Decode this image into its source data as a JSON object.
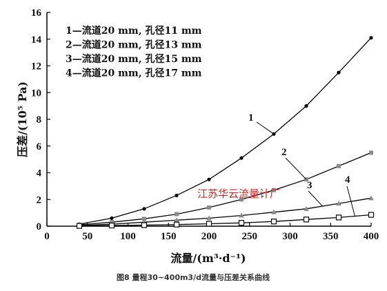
{
  "chart_data": {
    "type": "line",
    "xlabel": "流量/(m³·d⁻¹)",
    "ylabel": "压差/(10⁵ Pa)",
    "xlim": [
      0,
      400
    ],
    "ylim": [
      0,
      16
    ],
    "xticks": [
      0,
      50,
      100,
      150,
      200,
      250,
      300,
      350,
      400
    ],
    "yticks": [
      0,
      2,
      4,
      6,
      8,
      10,
      12,
      14,
      16
    ],
    "grid": false,
    "legend_position": "top-left",
    "series": [
      {
        "name": "1",
        "legend": "1—流道20 mm, 孔径11 mm",
        "marker": "filled-circle",
        "color": "#000000",
        "x": [
          40,
          80,
          120,
          160,
          200,
          240,
          280,
          320,
          360,
          400
        ],
        "y": [
          0.15,
          0.6,
          1.3,
          2.3,
          3.5,
          5.1,
          6.9,
          9.0,
          11.5,
          14.1
        ]
      },
      {
        "name": "2",
        "legend": "2—流道20 mm, 孔径13 mm",
        "marker": "filled-square",
        "color": "#8a8a8a",
        "x": [
          40,
          80,
          120,
          160,
          200,
          240,
          280,
          320,
          360,
          400
        ],
        "y": [
          0.1,
          0.3,
          0.55,
          0.9,
          1.4,
          2.0,
          2.7,
          3.5,
          4.5,
          5.5
        ]
      },
      {
        "name": "3",
        "legend": "3—流道20 mm, 孔径15 mm",
        "marker": "filled-triangle",
        "color": "#8a8a8a",
        "x": [
          40,
          80,
          120,
          160,
          200,
          240,
          280,
          320,
          360,
          400
        ],
        "y": [
          0.05,
          0.15,
          0.3,
          0.45,
          0.6,
          0.8,
          1.05,
          1.3,
          1.7,
          2.1
        ]
      },
      {
        "name": "4",
        "legend": "4—流道20 mm, 孔径17 mm",
        "marker": "open-square",
        "color": "#000000",
        "x": [
          40,
          80,
          120,
          160,
          200,
          240,
          280,
          320,
          360,
          400
        ],
        "y": [
          0.02,
          0.05,
          0.08,
          0.12,
          0.18,
          0.25,
          0.35,
          0.5,
          0.65,
          0.85
        ]
      }
    ],
    "annotations": [
      "江苏华云流量计厂"
    ],
    "caption": "图8 量程30~400m3/d流量与压差关系曲线"
  }
}
